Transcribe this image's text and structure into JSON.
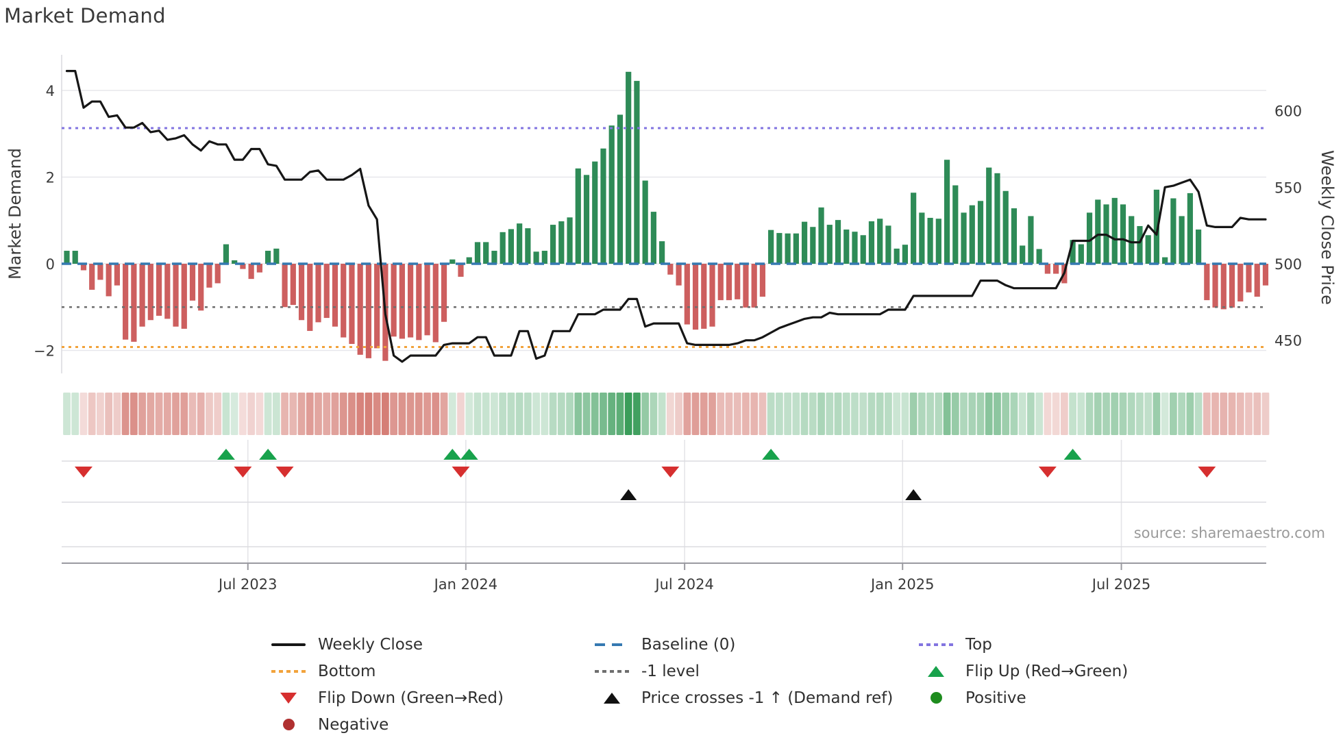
{
  "title": "Market Demand",
  "left_axis": {
    "label": "Market Demand",
    "ticks": [
      4,
      2,
      0,
      -2
    ]
  },
  "right_axis": {
    "label": "Weekly Close Price",
    "ticks": [
      600,
      550,
      500,
      450
    ]
  },
  "source": "source: sharemaestro.com",
  "colors": {
    "bar_positive": "#2e8b57",
    "bar_negative": "#cd5f5f",
    "price_line": "#161616",
    "baseline": "#3579b1",
    "top_line": "#8274e0",
    "bottom_line": "#f2a33c",
    "minus1_line": "#6e6e6e",
    "flip_up": "#18a24c",
    "flip_down": "#d62f2f",
    "price_cross": "#111111",
    "positive_dot": "#1e8c1e",
    "negative_dot": "#b03030",
    "heat_green_rgb": "37,146,72",
    "heat_red_rgb": "201,90,80",
    "grid": "#e7e7ec",
    "marker_grid": "#dcdce0",
    "marker_axis": "#9a9aa0",
    "axis_text": "#3a3a3a"
  },
  "legend": {
    "columns": [
      {
        "items": [
          {
            "swatch": "line",
            "color": "#161616",
            "label": "Weekly Close"
          },
          {
            "swatch": "dots",
            "color": "#f2a33c",
            "label": "Bottom"
          },
          {
            "swatch": "tri-down",
            "color": "#d62f2f",
            "label": "Flip Down (Green→Red)"
          },
          {
            "swatch": "circle",
            "color": "#b03030",
            "label": "Negative"
          }
        ]
      },
      {
        "items": [
          {
            "swatch": "dashes",
            "color": "#3579b1",
            "label": "Baseline (0)"
          },
          {
            "swatch": "dots",
            "color": "#6e6e6e",
            "label": "-1 level"
          },
          {
            "swatch": "tri-up",
            "color": "#111111",
            "label": "Price crosses -1 ↑ (Demand ref)"
          }
        ]
      },
      {
        "items": [
          {
            "swatch": "dots",
            "color": "#8274e0",
            "label": "Top"
          },
          {
            "swatch": "tri-up",
            "color": "#18a24c",
            "label": "Flip Up (Red→Green)"
          },
          {
            "swatch": "circle",
            "color": "#1e8c1e",
            "label": "Positive"
          }
        ]
      }
    ]
  },
  "chart_data": {
    "type": "bar+line",
    "title": "Market Demand",
    "xlabel": "",
    "ylabel_left": "Market Demand",
    "ylabel_right": "Weekly Close Price",
    "freq": "weekly",
    "ylim_demand": [
      -2.5,
      4.8
    ],
    "ylim_price": [
      443,
      627
    ],
    "x_ticks": [
      {
        "label": "Jul 2023",
        "week": 21.6
      },
      {
        "label": "Jan 2024",
        "week": 47.6
      },
      {
        "label": "Jul 2024",
        "week": 73.7
      },
      {
        "label": "Jan 2025",
        "week": 99.7
      },
      {
        "label": "Jul 2025",
        "week": 125.8
      }
    ],
    "reference_lines": [
      {
        "name": "Top",
        "value": 3.13,
        "color": "#8274e0",
        "dash": "4,6",
        "width": 3
      },
      {
        "name": "Baseline (0)",
        "value": 0,
        "color": "#3579b1",
        "dash": "14,9",
        "width": 3.6
      },
      {
        "name": "-1 level",
        "value": -1,
        "color": "#6e6e6e",
        "dash": "4,7",
        "width": 2.6
      },
      {
        "name": "Bottom",
        "value": -1.92,
        "color": "#f2a33c",
        "dash": "4,6",
        "width": 3
      }
    ],
    "series": [
      {
        "name": "Market Demand",
        "type": "bar",
        "axis": "demand",
        "values": [
          0.3,
          0.3,
          -0.15,
          -0.6,
          -0.37,
          -0.75,
          -0.5,
          -1.75,
          -1.8,
          -1.45,
          -1.3,
          -1.2,
          -1.27,
          -1.45,
          -1.5,
          -0.85,
          -1.08,
          -0.55,
          -0.45,
          0.45,
          0.08,
          -0.12,
          -0.35,
          -0.2,
          0.3,
          0.35,
          -1.0,
          -0.95,
          -1.3,
          -1.55,
          -1.35,
          -1.25,
          -1.45,
          -1.7,
          -1.85,
          -2.1,
          -2.18,
          -1.95,
          -2.24,
          -1.68,
          -1.73,
          -1.7,
          -1.76,
          -1.65,
          -1.81,
          -1.34,
          0.1,
          -0.3,
          0.15,
          0.5,
          0.5,
          0.3,
          0.73,
          0.8,
          0.93,
          0.82,
          0.28,
          0.3,
          0.9,
          0.98,
          1.07,
          2.2,
          2.05,
          2.36,
          2.66,
          3.19,
          3.44,
          4.43,
          4.22,
          1.92,
          1.2,
          0.52,
          -0.25,
          -0.5,
          -1.4,
          -1.52,
          -1.5,
          -1.45,
          -0.84,
          -0.84,
          -0.82,
          -1.01,
          -1.01,
          -0.76,
          0.78,
          0.71,
          0.7,
          0.7,
          0.97,
          0.85,
          1.3,
          0.9,
          1.01,
          0.79,
          0.74,
          0.66,
          0.98,
          1.04,
          0.88,
          0.35,
          0.44,
          1.64,
          1.18,
          1.06,
          1.04,
          2.4,
          1.81,
          1.18,
          1.35,
          1.45,
          2.22,
          2.09,
          1.68,
          1.28,
          0.42,
          1.1,
          0.34,
          -0.23,
          -0.23,
          -0.45,
          0.55,
          0.45,
          1.18,
          1.48,
          1.37,
          1.52,
          1.37,
          1.1,
          0.87,
          0.66,
          1.71,
          0.15,
          1.51,
          1.1,
          1.63,
          0.79,
          -0.84,
          -1.01,
          -1.05,
          -1.01,
          -0.87,
          -0.66,
          -0.76,
          -0.5
        ]
      },
      {
        "name": "Weekly Close",
        "type": "line",
        "axis": "price",
        "values": [
          626,
          626,
          602,
          606,
          606,
          596,
          597,
          589,
          589,
          592,
          586,
          587,
          581,
          582,
          584,
          578,
          574,
          580,
          578,
          578,
          568,
          568,
          575,
          575,
          565,
          564,
          555,
          555,
          555,
          560,
          561,
          555,
          555,
          555,
          558,
          562,
          538,
          529,
          467,
          440,
          436,
          440,
          440,
          440,
          440,
          447,
          448,
          448,
          448,
          452,
          452,
          440,
          440,
          440,
          456,
          456,
          438,
          440,
          456,
          456,
          456,
          467,
          467,
          467,
          470,
          470,
          470,
          477,
          477,
          459,
          461,
          461,
          461,
          461,
          448,
          447,
          447,
          447,
          447,
          447,
          448,
          450,
          450,
          452,
          455,
          458,
          460,
          462,
          464,
          465,
          465,
          468,
          467,
          467,
          467,
          467,
          467,
          467,
          470,
          470,
          470,
          479,
          479,
          479,
          479,
          479,
          479,
          479,
          479,
          489,
          489,
          489,
          486,
          484,
          484,
          484,
          484,
          484,
          484,
          494,
          515,
          515,
          515,
          519,
          519,
          516,
          516,
          514,
          514,
          525,
          519,
          550,
          551,
          553,
          555,
          547,
          525,
          524,
          524,
          524,
          530,
          529,
          529,
          529
        ]
      }
    ],
    "heatmap": {
      "source_series": "Market Demand",
      "note": "color intensity mirrors weekly demand value"
    },
    "markers": {
      "flip_up": {
        "label": "Flip Up (Red→Green)",
        "weeks": [
          19,
          24,
          46,
          48,
          84,
          120
        ]
      },
      "flip_down": {
        "label": "Flip Down (Green→Red)",
        "weeks": [
          2,
          21,
          26,
          47,
          72,
          117,
          136
        ]
      },
      "price_cross": {
        "label": "Price crosses -1 ↑ (Demand ref)",
        "weeks": [
          67,
          101
        ]
      }
    }
  }
}
